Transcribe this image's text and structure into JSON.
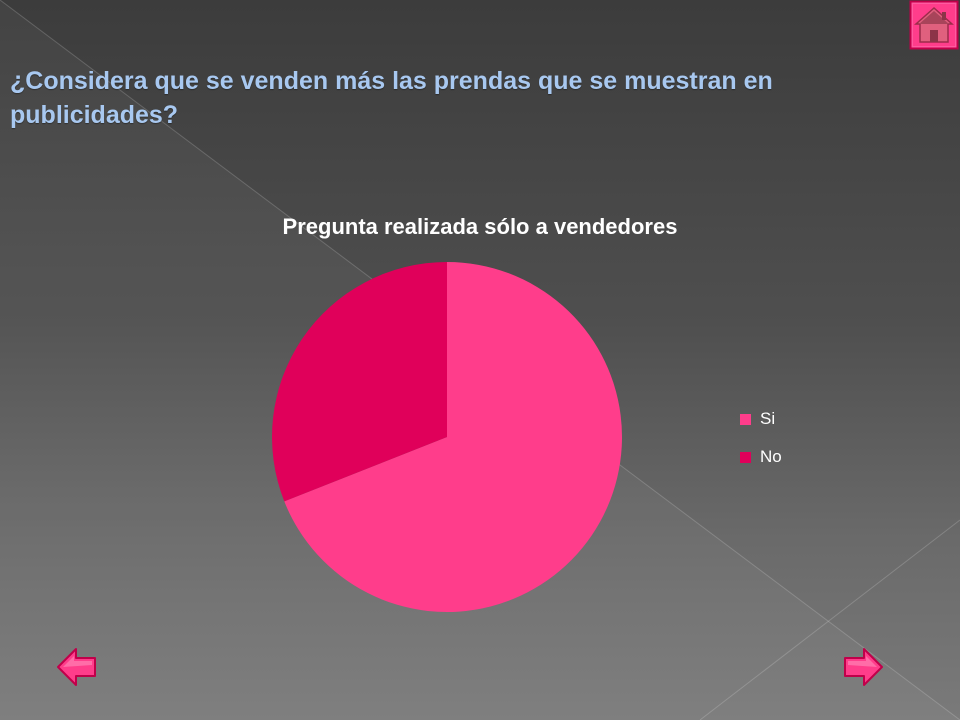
{
  "slide": {
    "title": "¿Considera que se venden más las prendas que se muestran en publicidades?"
  },
  "navigation": {
    "home_icon": "home-icon",
    "prev_icon": "left-arrow-icon",
    "next_icon": "right-arrow-icon"
  },
  "colors": {
    "si": "#ff3d8b",
    "no": "#e0005a",
    "title_text": "#a8c8f0",
    "nav_accent": "#ff3d8b"
  },
  "chart_data": {
    "type": "pie",
    "title": "Pregunta realizada sólo a vendedores",
    "legend_position": "right",
    "categories": [
      "Si",
      "No"
    ],
    "values": [
      69,
      31
    ],
    "colors": [
      "#ff3d8b",
      "#e0005a"
    ]
  }
}
